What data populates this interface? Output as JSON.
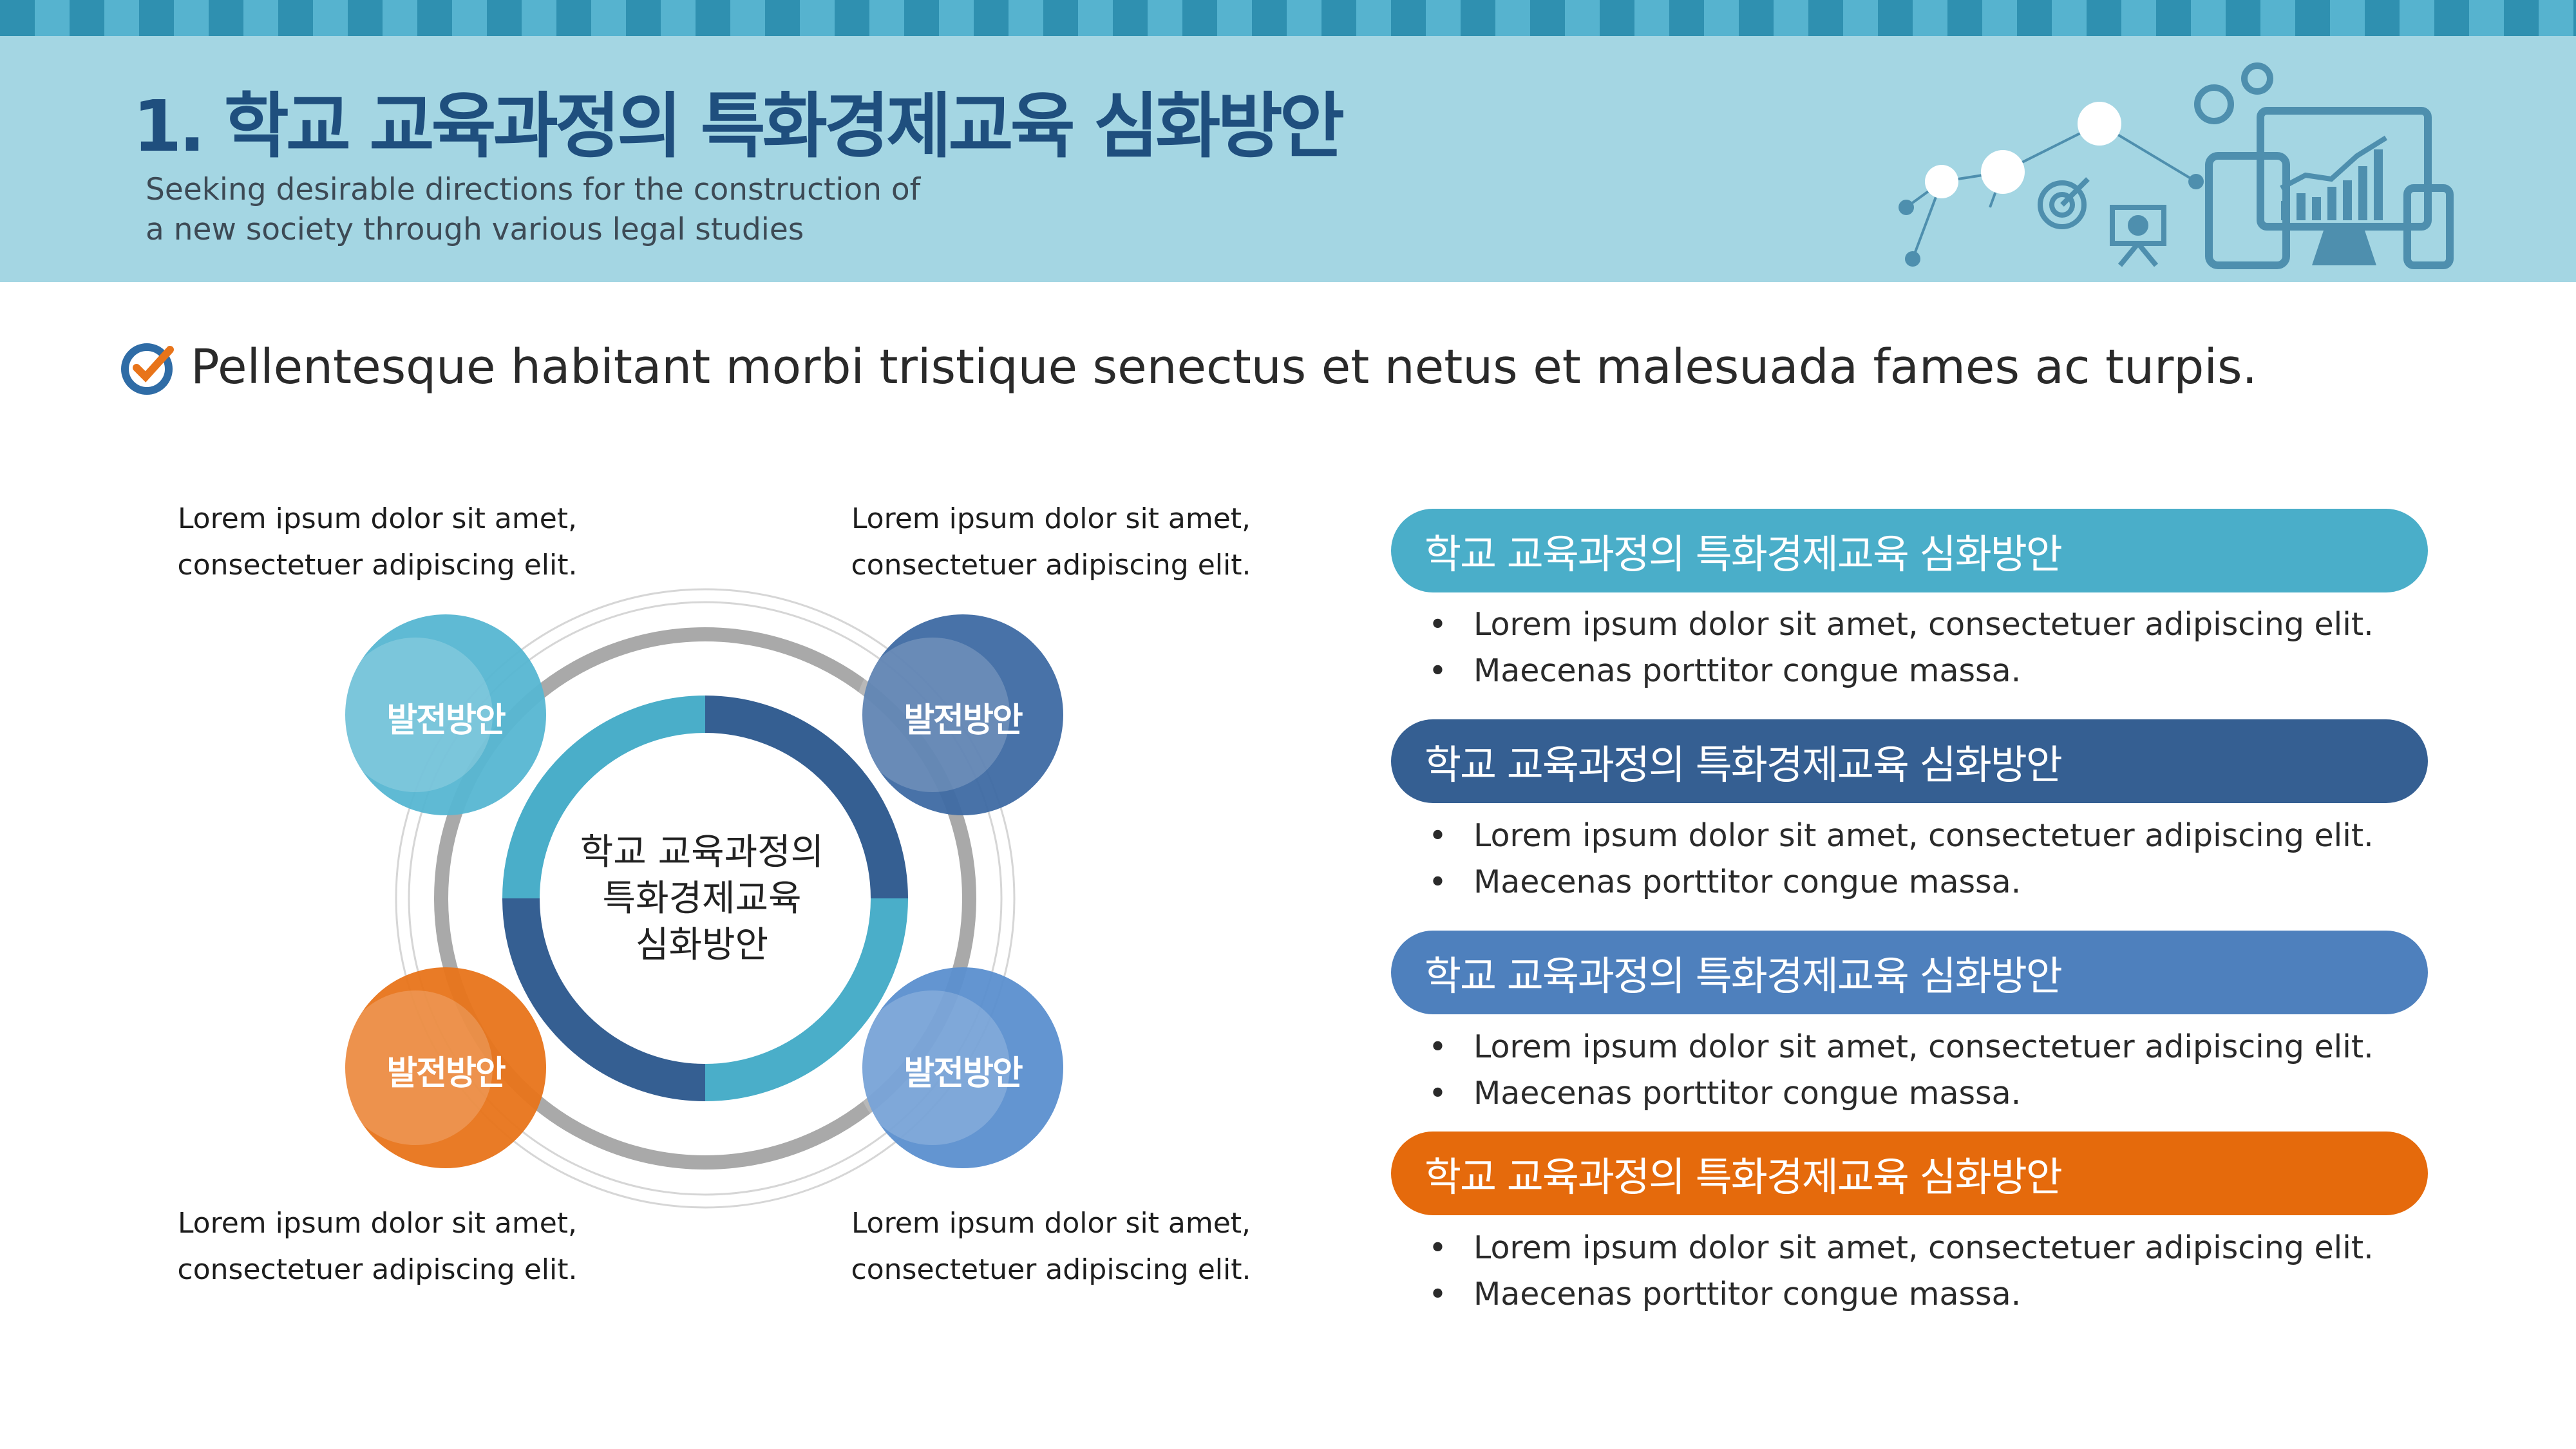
{
  "header": {
    "title": "1. 학교 교육과정의 특화경제교육 심화방안",
    "subtitle_line1": "Seeking desirable directions for the construction of",
    "subtitle_line2": "a new society through various legal studies"
  },
  "headline": "Pellentesque habitant morbi tristique senectus et netus et malesuada fames ac turpis.",
  "diagram": {
    "center_lines": [
      "학교 교육과정의",
      "특화경제교육",
      "심화방안"
    ],
    "bubbles": [
      {
        "label": "발전방안",
        "color": "#56b6d2"
      },
      {
        "label": "발전방안",
        "color": "#3e6aa3"
      },
      {
        "label": "발전방안",
        "color": "#e8741a"
      },
      {
        "label": "발전방안",
        "color": "#5b8fcf"
      }
    ],
    "corner_texts": [
      {
        "line1": "Lorem ipsum dolor sit amet,",
        "line2": "consectetuer adipiscing elit."
      },
      {
        "line1": "Lorem ipsum dolor sit amet,",
        "line2": "consectetuer adipiscing elit."
      },
      {
        "line1": "Lorem ipsum dolor sit amet,",
        "line2": "consectetuer adipiscing elit."
      },
      {
        "line1": "Lorem ipsum dolor sit amet,",
        "line2": "consectetuer adipiscing elit."
      }
    ]
  },
  "sections": [
    {
      "title": "학교 교육과정의 특화경제교육 심화방안",
      "color": "#4aaec9",
      "items": [
        "Lorem ipsum dolor sit amet, consectetuer adipiscing elit.",
        "Maecenas porttitor congue massa."
      ]
    },
    {
      "title": "학교 교육과정의 특화경제교육 심화방안",
      "color": "#355f92",
      "items": [
        "Lorem ipsum dolor sit amet, consectetuer adipiscing elit.",
        "Maecenas porttitor congue massa."
      ]
    },
    {
      "title": "학교 교육과정의 특화경제교육 심화방안",
      "color": "#4e80bd",
      "items": [
        "Lorem ipsum dolor sit amet, consectetuer adipiscing elit.",
        "Maecenas porttitor congue massa."
      ]
    },
    {
      "title": "학교 교육과정의 특화경제교육 심화방안",
      "color": "#e56a0c",
      "items": [
        "Lorem ipsum dolor sit amet, consectetuer adipiscing elit.",
        "Maecenas porttitor congue massa."
      ]
    }
  ],
  "bullet_char": "•"
}
